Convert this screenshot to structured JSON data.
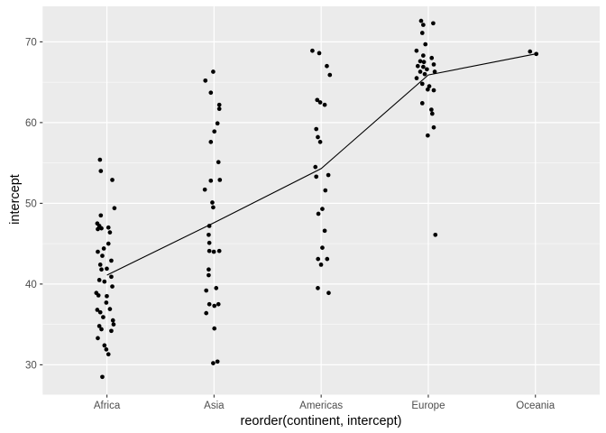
{
  "chart_data": {
    "type": "scatter",
    "title": "",
    "xlabel": "reorder(continent, intercept)",
    "ylabel": "intercept",
    "categories": [
      "Africa",
      "Asia",
      "Americas",
      "Europe",
      "Oceania"
    ],
    "y_axis": {
      "ticks": [
        30,
        40,
        50,
        60,
        70
      ],
      "minor_ticks": [
        35,
        45,
        55,
        65
      ],
      "range": [
        26.3,
        74.4
      ]
    },
    "legend": "none",
    "grid": {
      "horizontal": "major+minor",
      "vertical": "major-only"
    },
    "series": [
      {
        "name": "country-intercept-points",
        "type": "jittered-points",
        "groups": [
          {
            "category": "Africa",
            "points": [
              [
                55.4,
                -0.065
              ],
              [
                54.0,
                -0.057
              ],
              [
                52.9,
                0.05
              ],
              [
                49.4,
                0.07
              ],
              [
                48.5,
                -0.057
              ],
              [
                47.5,
                -0.09
              ],
              [
                47.2,
                -0.071
              ],
              [
                47.0,
                0.014
              ],
              [
                46.9,
                -0.051
              ],
              [
                46.8,
                -0.085
              ],
              [
                46.4,
                0.028
              ],
              [
                45.0,
                0.014
              ],
              [
                44.4,
                -0.029
              ],
              [
                44.0,
                -0.085
              ],
              [
                43.5,
                -0.043
              ],
              [
                42.9,
                0.041
              ],
              [
                42.4,
                -0.062
              ],
              [
                41.9,
                -0.001
              ],
              [
                41.8,
                -0.051
              ],
              [
                40.9,
                0.041
              ],
              [
                40.5,
                -0.071
              ],
              [
                40.3,
                -0.023
              ],
              [
                39.7,
                0.05
              ],
              [
                38.9,
                -0.099
              ],
              [
                38.6,
                -0.079
              ],
              [
                38.5,
                -0.001
              ],
              [
                37.7,
                -0.006
              ],
              [
                36.9,
                0.028
              ],
              [
                36.8,
                -0.09
              ],
              [
                36.5,
                -0.062
              ],
              [
                35.9,
                -0.035
              ],
              [
                35.5,
                0.056
              ],
              [
                35.0,
                0.062
              ],
              [
                34.8,
                -0.071
              ],
              [
                34.4,
                -0.051
              ],
              [
                34.2,
                0.041
              ],
              [
                33.3,
                -0.085
              ],
              [
                32.4,
                -0.023
              ],
              [
                31.9,
                -0.006
              ],
              [
                31.3,
                0.014
              ],
              [
                28.5,
                -0.043
              ]
            ]
          },
          {
            "category": "Asia",
            "points": [
              [
                66.3,
                -0.008
              ],
              [
                65.2,
                -0.081
              ],
              [
                63.7,
                -0.03
              ],
              [
                62.2,
                0.049
              ],
              [
                61.7,
                0.049
              ],
              [
                59.9,
                0.032
              ],
              [
                58.9,
                0.003
              ],
              [
                57.6,
                -0.03
              ],
              [
                55.1,
                0.041
              ],
              [
                52.9,
                0.054
              ],
              [
                52.8,
                -0.03
              ],
              [
                51.7,
                -0.086
              ],
              [
                50.1,
                -0.016
              ],
              [
                49.5,
                -0.008
              ],
              [
                47.2,
                -0.044
              ],
              [
                46.1,
                -0.05
              ],
              [
                45.1,
                -0.044
              ],
              [
                44.1,
                -0.044
              ],
              [
                44.0,
                -0.002
              ],
              [
                44.1,
                0.049
              ],
              [
                41.8,
                -0.05
              ],
              [
                41.1,
                -0.05
              ],
              [
                39.5,
                0.02
              ],
              [
                39.2,
                -0.073
              ],
              [
                37.5,
                -0.044
              ],
              [
                37.3,
                0.003
              ],
              [
                37.5,
                0.041
              ],
              [
                36.4,
                -0.073
              ],
              [
                34.5,
                0.003
              ],
              [
                30.2,
                -0.008
              ],
              [
                30.4,
                0.032
              ]
            ]
          },
          {
            "category": "Americas",
            "points": [
              [
                68.9,
                -0.082
              ],
              [
                68.6,
                -0.018
              ],
              [
                67.0,
                0.053
              ],
              [
                65.9,
                0.081
              ],
              [
                62.8,
                -0.037
              ],
              [
                62.5,
                -0.009
              ],
              [
                62.2,
                0.033
              ],
              [
                59.2,
                -0.046
              ],
              [
                58.2,
                -0.031
              ],
              [
                57.6,
                -0.009
              ],
              [
                54.5,
                -0.054
              ],
              [
                53.5,
                0.067
              ],
              [
                53.3,
                -0.046
              ],
              [
                51.6,
                0.039
              ],
              [
                49.3,
                0.011
              ],
              [
                48.7,
                -0.026
              ],
              [
                46.6,
                0.033
              ],
              [
                44.5,
                0.011
              ],
              [
                43.1,
                -0.029
              ],
              [
                43.1,
                0.056
              ],
              [
                42.4,
                -0.001
              ],
              [
                39.5,
                -0.031
              ],
              [
                38.9,
                0.07
              ]
            ]
          },
          {
            "category": "Europe",
            "points": [
              [
                72.6,
                -0.067
              ],
              [
                72.3,
                0.046
              ],
              [
                72.1,
                -0.047
              ],
              [
                71.1,
                -0.056
              ],
              [
                69.7,
                -0.027
              ],
              [
                68.9,
                -0.11
              ],
              [
                68.3,
                -0.047
              ],
              [
                68.0,
                0.032
              ],
              [
                67.6,
                -0.075
              ],
              [
                67.5,
                -0.041
              ],
              [
                67.2,
                0.051
              ],
              [
                67.0,
                -0.098
              ],
              [
                66.9,
                -0.047
              ],
              [
                66.6,
                -0.013
              ],
              [
                66.3,
                -0.075
              ],
              [
                66.3,
                0.06
              ],
              [
                66.0,
                -0.033
              ],
              [
                65.5,
                -0.109
              ],
              [
                64.8,
                -0.056
              ],
              [
                64.5,
                0.009
              ],
              [
                64.1,
                -0.005
              ],
              [
                64.0,
                0.051
              ],
              [
                62.4,
                -0.056
              ],
              [
                61.6,
                0.029
              ],
              [
                61.1,
                0.037
              ],
              [
                59.4,
                0.051
              ],
              [
                58.4,
                -0.005
              ],
              [
                46.1,
                0.066
              ]
            ]
          },
          {
            "category": "Oceania",
            "points": [
              [
                68.8,
                -0.05
              ],
              [
                68.5,
                0.008
              ]
            ]
          }
        ]
      },
      {
        "name": "continent-mean-line",
        "type": "line",
        "categories": [
          "Africa",
          "Asia",
          "Americas",
          "Europe",
          "Oceania"
        ],
        "values": [
          41.1,
          47.6,
          54.3,
          65.9,
          68.5
        ]
      }
    ],
    "style": {
      "panel_bg": "#EBEBEB",
      "grid_color": "#FFFFFF",
      "point_color": "#000000",
      "line_color": "#000000",
      "tick_label_color": "#4D4D4D",
      "tick_mark_color": "#333333",
      "axis_title_color": "#000000",
      "background": "#FFFFFF"
    }
  }
}
